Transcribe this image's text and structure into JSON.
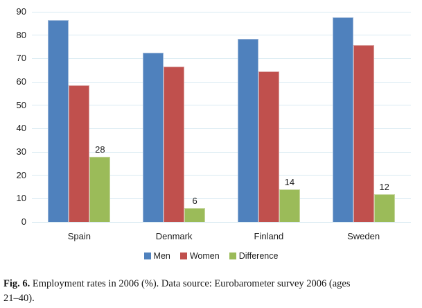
{
  "chart_data": {
    "type": "bar",
    "title": "",
    "categories": [
      "Spain",
      "Denmark",
      "Finland",
      "Sweden"
    ],
    "series": [
      {
        "name": "Men",
        "color": "#4F81BD",
        "border_color": "#9FB9DA",
        "values": [
          86.4,
          72.6,
          78.4,
          87.6
        ]
      },
      {
        "name": "Women",
        "color": "#C0504D",
        "border_color": "#D9A09E",
        "values": [
          58.4,
          66.6,
          64.4,
          75.6
        ]
      },
      {
        "name": "Difference",
        "color": "#9BBB59",
        "border_color": "#C6D79F",
        "values": [
          28,
          6,
          14,
          12
        ],
        "data_labels": [
          "28",
          "6",
          "14",
          "12"
        ]
      }
    ],
    "y_ticks": [
      0,
      10,
      20,
      30,
      40,
      50,
      60,
      70,
      80,
      90
    ],
    "ylim": [
      0,
      90
    ],
    "xlabel": "",
    "ylabel": "",
    "grid": true,
    "gridline_color": "#d8eaf2",
    "legend_position": "bottom",
    "legend_entries": [
      "Men",
      "Women",
      "Difference"
    ]
  },
  "caption": {
    "fig_label": "Fig. 6.",
    "line1": "Employment rates in 2006 (%). Data source: Eurobarometer survey 2006 (ages",
    "line2": "21–40)."
  }
}
